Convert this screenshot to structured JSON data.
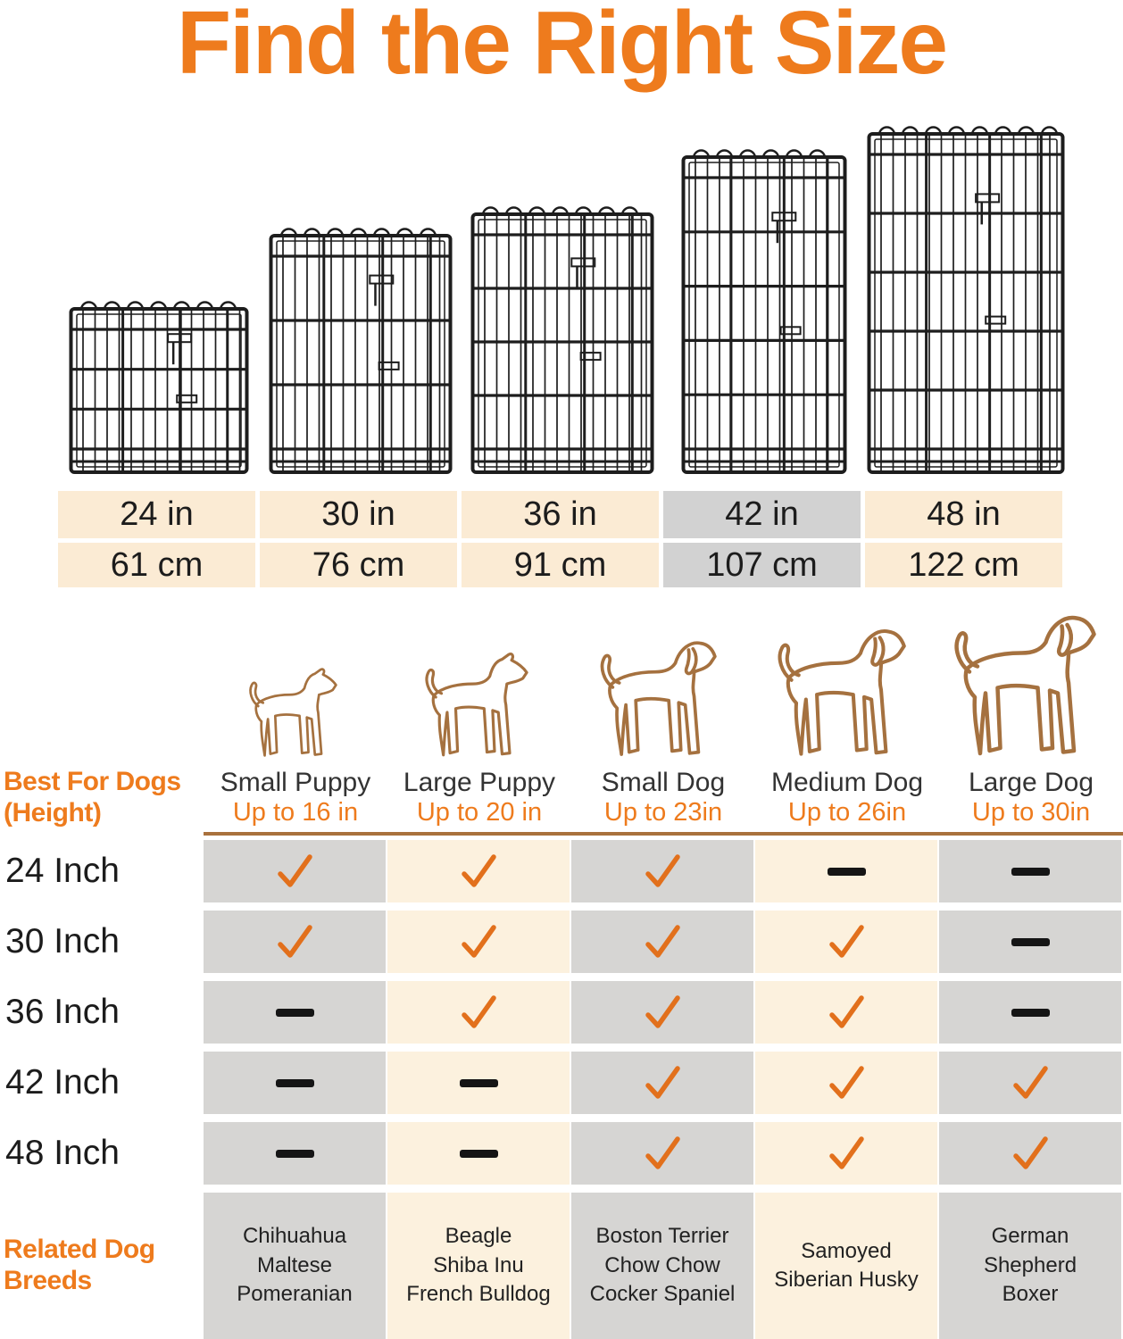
{
  "title": "Find the Right Size",
  "colors": {
    "accent": "#EE7B1D",
    "check": "#E2701C",
    "ink": "#1c1c1c",
    "cream_size": "#FBEBD4",
    "gray_size": "#D2D2D2",
    "cream_grid": "#FCF1DE",
    "gray_grid": "#D6D5D3",
    "brown_line": "#A9713C",
    "dog_outline": "#A5713F",
    "wire": "#1d1d1d"
  },
  "icons": {
    "crate": "wire-crate-icon",
    "dog": "dog-silhouette-icon",
    "check": "check-icon",
    "dash": "dash-icon"
  },
  "sizes": [
    {
      "in": "24 in",
      "cm": "61 cm",
      "highlighted": false
    },
    {
      "in": "30 in",
      "cm": "76 cm",
      "highlighted": false
    },
    {
      "in": "36 in",
      "cm": "91 cm",
      "highlighted": false
    },
    {
      "in": "42 in",
      "cm": "107 cm",
      "highlighted": true
    },
    {
      "in": "48 in",
      "cm": "122 cm",
      "highlighted": false
    }
  ],
  "row_header": {
    "line1": "Best For Dogs",
    "line2": "(Height)"
  },
  "breeds_header": {
    "line1": "Related Dog",
    "line2": "Breeds"
  },
  "columns": [
    {
      "label": "Small Puppy",
      "sub": "Up to 16 in",
      "breeds": [
        "Chihuahua",
        "Maltese",
        "Pomeranian"
      ]
    },
    {
      "label": "Large Puppy",
      "sub": "Up to 20 in",
      "breeds": [
        "Beagle",
        "Shiba Inu",
        "French Bulldog"
      ]
    },
    {
      "label": "Small Dog",
      "sub": "Up to 23in",
      "breeds": [
        "Boston Terrier",
        "Chow Chow",
        "Cocker Spaniel"
      ]
    },
    {
      "label": "Medium Dog",
      "sub": "Up to 26in",
      "breeds": [
        "Samoyed",
        "Siberian Husky"
      ]
    },
    {
      "label": "Large Dog",
      "sub": "Up to 30in",
      "breeds": [
        "German",
        "Shepherd",
        "Boxer"
      ]
    }
  ],
  "rows": [
    {
      "label": "24 Inch",
      "cells": [
        "check",
        "check",
        "check",
        "dash",
        "dash"
      ]
    },
    {
      "label": "30 Inch",
      "cells": [
        "check",
        "check",
        "check",
        "check",
        "dash"
      ]
    },
    {
      "label": "36 Inch",
      "cells": [
        "dash",
        "check",
        "check",
        "check",
        "dash"
      ]
    },
    {
      "label": "42 Inch",
      "cells": [
        "dash",
        "dash",
        "check",
        "check",
        "check"
      ]
    },
    {
      "label": "48 Inch",
      "cells": [
        "dash",
        "dash",
        "check",
        "check",
        "check"
      ]
    }
  ],
  "chart_data": {
    "type": "table",
    "title": "Find the Right Size",
    "columns": [
      "Small Puppy (Up to 16 in)",
      "Large Puppy (Up to 20 in)",
      "Small Dog (Up to 23in)",
      "Medium Dog (Up to 26in)",
      "Large Dog (Up to 30in)"
    ],
    "rows": [
      "24 Inch",
      "30 Inch",
      "36 Inch",
      "42 Inch",
      "48 Inch"
    ],
    "values": [
      [
        true,
        true,
        true,
        false,
        false
      ],
      [
        true,
        true,
        true,
        true,
        false
      ],
      [
        false,
        true,
        true,
        true,
        false
      ],
      [
        false,
        false,
        true,
        true,
        true
      ],
      [
        false,
        false,
        true,
        true,
        true
      ]
    ],
    "sizes_in": [
      "24 in",
      "30 in",
      "36 in",
      "42 in",
      "48 in"
    ],
    "sizes_cm": [
      "61 cm",
      "76 cm",
      "91 cm",
      "107 cm",
      "122 cm"
    ],
    "highlighted_size": "42 in / 107 cm",
    "related_breeds": [
      [
        "Chihuahua",
        "Maltese",
        "Pomeranian"
      ],
      [
        "Beagle",
        "Shiba Inu",
        "French Bulldog"
      ],
      [
        "Boston Terrier",
        "Chow Chow",
        "Cocker Spaniel"
      ],
      [
        "Samoyed",
        "Siberian Husky"
      ],
      [
        "German",
        "Shepherd",
        "Boxer"
      ]
    ],
    "legend_position": "none",
    "grid": false
  }
}
